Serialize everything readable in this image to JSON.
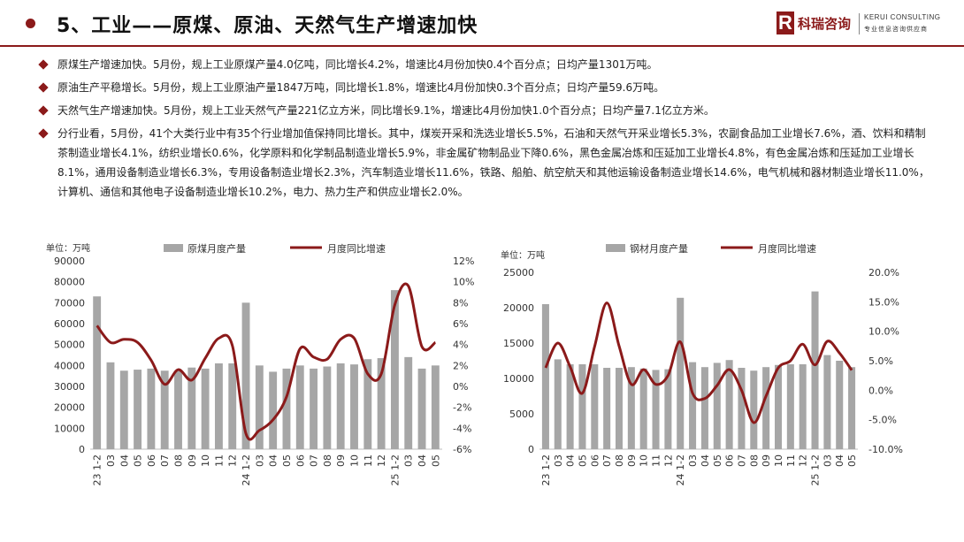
{
  "header": {
    "title": "5、工业——原煤、原油、天然气生产增速加快",
    "logo_mark": "R",
    "logo_cn": "科瑞咨询",
    "logo_en": "KERUI CONSULTING",
    "logo_sub": "专业信息咨询供应商"
  },
  "bullets": [
    "原煤生产增速加快。5月份，规上工业原煤产量4.0亿吨，同比增长4.2%，增速比4月份加快0.4个百分点；日均产量1301万吨。",
    "原油生产平稳增长。5月份，规上工业原油产量1847万吨，同比增长1.8%，增速比4月份加快0.3个百分点；日均产量59.6万吨。",
    "天然气生产增速加快。5月份，规上工业天然气产量221亿立方米，同比增长9.1%，增速比4月份加快1.0个百分点；日均产量7.1亿立方米。",
    "分行业看，5月份，41个大类行业中有35个行业增加值保持同比增长。其中，煤炭开采和洗选业增长5.5%，石油和天然气开采业增长5.3%，农副食品加工业增长7.6%，酒、饮料和精制茶制造业增长4.1%，纺织业增长0.6%，化学原料和化学制品制造业增长5.9%，非金属矿物制品业下降0.6%，黑色金属冶炼和压延加工业增长4.8%，有色金属冶炼和压延加工业增长8.1%，通用设备制造业增长6.3%，专用设备制造业增长2.3%，汽车制造业增长11.6%，铁路、船舶、航空航天和其他运输设备制造业增长14.6%，电气机械和器材制造业增长11.0%，计算机、通信和其他电子设备制造业增长10.2%，电力、热力生产和供应业增长2.0%。"
  ],
  "colors": {
    "accent": "#8b1a1a",
    "bar": "#a6a6a6",
    "line": "#8b1a1a"
  },
  "chart_data": [
    {
      "type": "bar",
      "unit_label": "单位：万吨",
      "categories": [
        "23 1-2",
        "03",
        "04",
        "05",
        "06",
        "07",
        "08",
        "09",
        "10",
        "11",
        "12",
        "24 1-2",
        "03",
        "04",
        "05",
        "06",
        "07",
        "08",
        "09",
        "10",
        "11",
        "12",
        "25 1-2",
        "03",
        "04",
        "05"
      ],
      "series": [
        {
          "name": "原煤月度产量",
          "type": "bar",
          "axis": "left",
          "values": [
            73000,
            41500,
            37500,
            38000,
            38500,
            37500,
            37500,
            39000,
            38500,
            41000,
            41000,
            70000,
            40000,
            37000,
            38500,
            40000,
            38500,
            39500,
            41000,
            40500,
            43000,
            43500,
            76000,
            44000,
            38500,
            40000
          ]
        },
        {
          "name": "月度同比增速",
          "type": "line",
          "axis": "right",
          "unit": "%",
          "values": [
            5.8,
            4.2,
            4.5,
            4.2,
            2.5,
            0.2,
            1.6,
            0.6,
            2.7,
            4.6,
            3.9,
            -4.5,
            -4.2,
            -3.2,
            -1.0,
            3.6,
            2.8,
            2.6,
            4.5,
            4.6,
            1.2,
            1.2,
            7.8,
            9.6,
            3.8,
            4.2
          ]
        }
      ],
      "yleft_ticks": [
        0,
        10000,
        20000,
        30000,
        40000,
        50000,
        60000,
        70000,
        80000,
        90000
      ],
      "yleft_ticklabels": [
        "0",
        "10000",
        "20000",
        "30000",
        "40000",
        "50000",
        "60000",
        "70000",
        "80000",
        "90000"
      ],
      "yright_ticks": [
        -6,
        -4,
        -2,
        0,
        2,
        4,
        6,
        8,
        10,
        12
      ],
      "yright_ticklabels": [
        "-6%",
        "-4%",
        "-2%",
        "0%",
        "2%",
        "4%",
        "6%",
        "8%",
        "10%",
        "12%"
      ],
      "yleft_lim": [
        0,
        90000
      ],
      "yright_lim": [
        -6,
        12
      ],
      "legend": "top",
      "grid": false
    },
    {
      "type": "bar",
      "unit_label": "单位：万吨",
      "categories": [
        "23 1-2",
        "03",
        "04",
        "05",
        "06",
        "07",
        "08",
        "09",
        "10",
        "11",
        "12",
        "24 1-2",
        "03",
        "04",
        "05",
        "06",
        "07",
        "08",
        "09",
        "10",
        "11",
        "12",
        "25 1-2",
        "03",
        "04",
        "05"
      ],
      "series": [
        {
          "name": "钢材月度产量",
          "type": "bar",
          "axis": "left",
          "values": [
            20500,
            12700,
            12000,
            12000,
            12000,
            11500,
            11500,
            11600,
            11400,
            11200,
            11300,
            21400,
            12300,
            11600,
            12200,
            12600,
            11500,
            11100,
            11600,
            11900,
            12000,
            12000,
            22300,
            13300,
            12500,
            11600
          ]
        },
        {
          "name": "月度同比增速",
          "type": "line",
          "axis": "right",
          "unit": "%",
          "values": [
            3.8,
            8.0,
            4.0,
            -0.5,
            7.4,
            14.8,
            7.5,
            1.0,
            3.5,
            1.0,
            2.5,
            8.2,
            -0.5,
            -1.4,
            0.8,
            3.5,
            0.0,
            -5.5,
            -1.0,
            3.8,
            5.0,
            7.8,
            4.3,
            8.3,
            6.3,
            3.4
          ]
        }
      ],
      "yleft_ticks": [
        0,
        5000,
        10000,
        15000,
        20000,
        25000
      ],
      "yleft_ticklabels": [
        "0",
        "5000",
        "10000",
        "15000",
        "20000",
        "25000"
      ],
      "yright_ticks": [
        -10,
        -5,
        0,
        5,
        10,
        15,
        20
      ],
      "yright_ticklabels": [
        "-10.0%",
        "-5.0%",
        "0.0%",
        "5.0%",
        "10.0%",
        "15.0%",
        "20.0%"
      ],
      "yleft_lim": [
        0,
        25000
      ],
      "yright_lim": [
        -10,
        20
      ],
      "legend": "top",
      "grid": false
    }
  ]
}
